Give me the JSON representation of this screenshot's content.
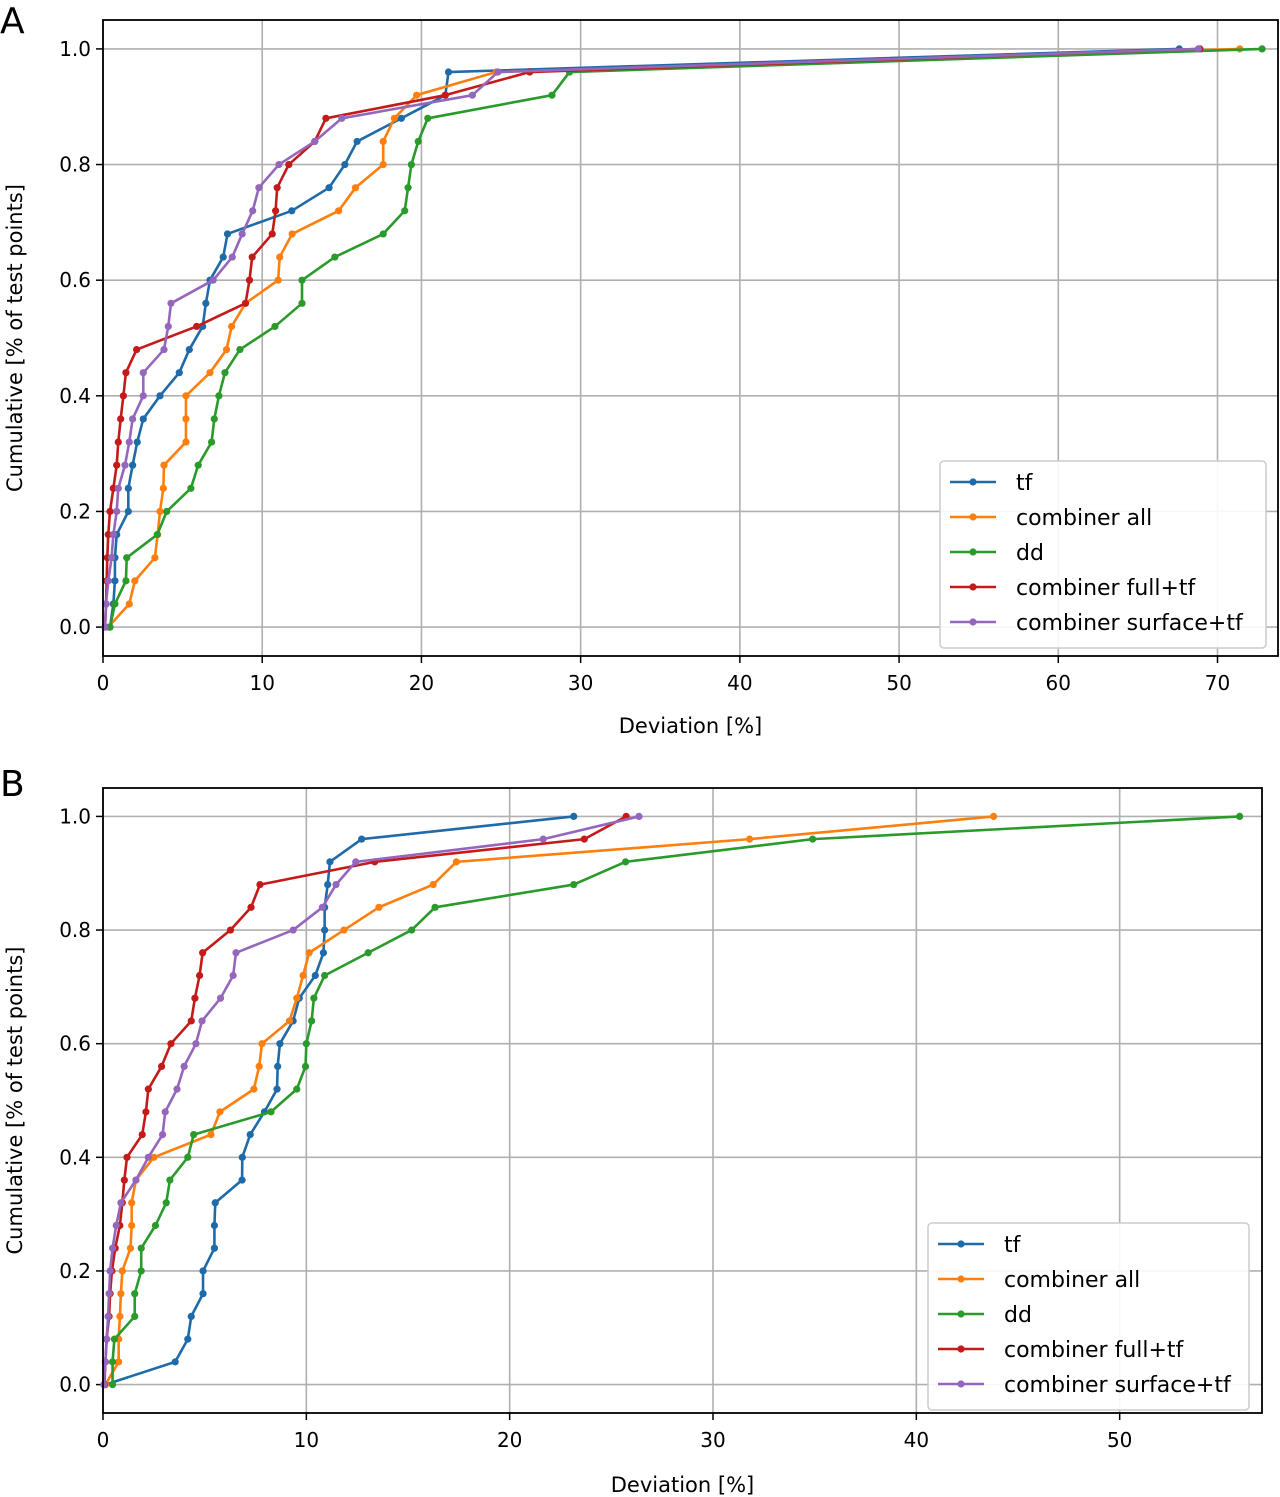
{
  "chart_data": [
    {
      "panel_label": "A",
      "type": "line",
      "xlabel": "Deviation [%]",
      "ylabel": "Cumulative [% of test points]",
      "xlim": [
        0,
        73.8
      ],
      "ylim": [
        -0.05,
        1.05
      ],
      "xticks": [
        0,
        10,
        20,
        30,
        40,
        50,
        60,
        70
      ],
      "yticks": [
        "0.0",
        "0.2",
        "0.4",
        "0.6",
        "0.8",
        "1.0"
      ],
      "grid": true,
      "legend_placement": "bottom-right",
      "y": [
        0,
        0.04,
        0.08,
        0.12,
        0.16,
        0.2,
        0.24,
        0.28,
        0.32,
        0.36,
        0.4,
        0.44,
        0.48,
        0.52,
        0.56,
        0.6,
        0.64,
        0.68,
        0.72,
        0.76,
        0.8,
        0.84,
        0.88,
        0.92,
        0.96,
        1.0
      ],
      "series": [
        {
          "name": "tf",
          "color": "#1f6aa8",
          "x": [
            0.44,
            0.65,
            0.75,
            0.75,
            0.86,
            1.59,
            1.59,
            1.86,
            2.15,
            2.53,
            3.58,
            4.79,
            5.42,
            6.26,
            6.46,
            6.72,
            7.55,
            7.82,
            11.86,
            14.2,
            15.19,
            15.96,
            18.74,
            21.5,
            21.7,
            67.6
          ]
        },
        {
          "name": "combiner all",
          "color": "#ff7f0e",
          "x": [
            0.33,
            1.65,
            2.0,
            3.26,
            3.43,
            3.58,
            3.79,
            3.83,
            5.21,
            5.21,
            5.21,
            6.72,
            7.76,
            8.08,
            8.95,
            11.0,
            11.1,
            11.88,
            14.8,
            15.86,
            17.6,
            17.6,
            18.3,
            19.7,
            24.7,
            71.4
          ]
        },
        {
          "name": "dd",
          "color": "#2a9a2a",
          "x": [
            0.44,
            0.75,
            1.44,
            1.49,
            3.41,
            4.0,
            5.52,
            5.98,
            6.82,
            6.99,
            7.28,
            7.66,
            8.6,
            10.8,
            12.5,
            12.5,
            14.56,
            17.6,
            18.95,
            19.16,
            19.37,
            19.8,
            20.4,
            28.2,
            29.3,
            72.8
          ]
        },
        {
          "name": "combiner full+tf",
          "color": "#c41a1a",
          "x": [
            0.13,
            0.19,
            0.23,
            0.27,
            0.33,
            0.44,
            0.65,
            0.86,
            0.96,
            1.11,
            1.28,
            1.44,
            2.11,
            5.88,
            8.95,
            9.2,
            9.37,
            10.63,
            10.84,
            10.94,
            11.67,
            13.3,
            14.0,
            21.5,
            26.8,
            68.9
          ]
        },
        {
          "name": "combiner surface+tf",
          "color": "#9467bd",
          "x": [
            0.13,
            0.19,
            0.33,
            0.54,
            0.65,
            0.86,
            0.96,
            1.38,
            1.65,
            1.86,
            2.53,
            2.53,
            3.83,
            4.1,
            4.27,
            6.92,
            8.12,
            8.74,
            9.4,
            9.79,
            11.05,
            13.3,
            15.0,
            23.2,
            24.8,
            68.8
          ]
        }
      ]
    },
    {
      "panel_label": "B",
      "type": "line",
      "xlabel": "Deviation [%]",
      "ylabel": "Cumulative [% of test points]",
      "xlim": [
        0,
        57.0
      ],
      "ylim": [
        -0.05,
        1.05
      ],
      "xticks": [
        0,
        10,
        20,
        30,
        40,
        50
      ],
      "yticks": [
        "0.0",
        "0.2",
        "0.4",
        "0.6",
        "0.8",
        "1.0"
      ],
      "grid": true,
      "legend_placement": "bottom-right",
      "y": [
        0,
        0.04,
        0.08,
        0.12,
        0.16,
        0.2,
        0.24,
        0.28,
        0.32,
        0.36,
        0.4,
        0.44,
        0.48,
        0.52,
        0.56,
        0.6,
        0.64,
        0.68,
        0.72,
        0.76,
        0.8,
        0.84,
        0.88,
        0.92,
        0.96,
        1.0
      ],
      "series": [
        {
          "name": "tf",
          "color": "#1f6aa8",
          "x": [
            0.12,
            3.55,
            4.17,
            4.34,
            4.92,
            4.92,
            5.48,
            5.48,
            5.52,
            6.84,
            6.85,
            7.24,
            7.94,
            8.56,
            8.59,
            8.7,
            9.35,
            9.65,
            10.44,
            10.84,
            10.9,
            10.9,
            11.05,
            11.16,
            12.72,
            23.15
          ]
        },
        {
          "name": "combiner all",
          "color": "#ff7f0e",
          "x": [
            0.12,
            0.77,
            0.77,
            0.83,
            0.88,
            0.95,
            1.35,
            1.41,
            1.41,
            1.62,
            2.5,
            5.31,
            5.75,
            7.42,
            7.68,
            7.82,
            9.17,
            9.53,
            9.84,
            10.14,
            11.85,
            13.57,
            16.24,
            17.38,
            31.8,
            43.8
          ]
        },
        {
          "name": "dd",
          "color": "#2a9a2a",
          "x": [
            0.47,
            0.47,
            0.56,
            1.56,
            1.56,
            1.88,
            1.88,
            2.58,
            3.11,
            3.29,
            4.17,
            4.46,
            8.26,
            9.53,
            9.96,
            10.0,
            10.26,
            10.37,
            10.9,
            13.04,
            15.18,
            16.33,
            23.15,
            25.7,
            34.9,
            55.9
          ]
        },
        {
          "name": "combiner full+tf",
          "color": "#c41a1a",
          "x": [
            0.07,
            0.12,
            0.18,
            0.3,
            0.35,
            0.44,
            0.6,
            0.83,
            0.95,
            1.05,
            1.18,
            1.93,
            2.11,
            2.23,
            2.88,
            3.34,
            4.34,
            4.52,
            4.75,
            4.9,
            6.27,
            7.28,
            7.72,
            13.36,
            23.67,
            25.73
          ]
        },
        {
          "name": "combiner surface+tf",
          "color": "#9467bd",
          "x": [
            0.04,
            0.12,
            0.18,
            0.25,
            0.3,
            0.35,
            0.47,
            0.65,
            0.88,
            1.62,
            2.23,
            2.93,
            3.06,
            3.64,
            3.99,
            4.57,
            4.87,
            5.78,
            6.4,
            6.54,
            9.35,
            10.79,
            11.46,
            12.43,
            21.65,
            26.36
          ]
        }
      ]
    }
  ]
}
